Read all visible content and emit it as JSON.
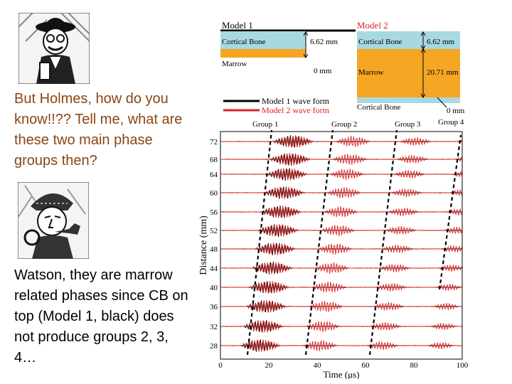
{
  "watson_text": "But Holmes, how do you know!!?? Tell me, what are these two main phase groups then?",
  "holmes_text": "Watson, they are marrow related phases since CB on top (Model 1, black) does not produce groups 2, 3, 4…",
  "model1": {
    "title": "Model 1",
    "layer_top": "Cortical Bone",
    "layer_bottom": "Marrow",
    "thickness_label": "6.62 mm",
    "zero_label": "0 mm",
    "colors": {
      "bone": "#a8d8e0",
      "marrow": "#f5a623"
    }
  },
  "model2": {
    "title": "Model 2",
    "layer_top": "Cortical Bone",
    "layer_mid": "Marrow",
    "layer_bottom": "Cortical Bone",
    "thickness_top_label": "6.62 mm",
    "thickness_mid_label": "20.71 mm",
    "zero_label": "0 mm"
  },
  "legend": [
    {
      "label": "Model 1 wave form",
      "color": "#000000"
    },
    {
      "label": "Model 2 wave form",
      "color": "#e02020"
    }
  ],
  "groups": [
    "Group 1",
    "Group 2",
    "Group 3",
    "Group 4"
  ],
  "chart_data": {
    "type": "line",
    "xlabel": "Time (μs)",
    "ylabel": "Distance (mm)",
    "x_ticks": [
      "0",
      "20",
      "40",
      "60",
      "80",
      "100"
    ],
    "y_ticks": [
      "72",
      "68",
      "64",
      "60",
      "56",
      "52",
      "48",
      "44",
      "40",
      "36",
      "32",
      "28"
    ],
    "xlim": [
      0,
      100
    ],
    "series": [
      {
        "name": "Model 1 wave form",
        "color": "#000000"
      },
      {
        "name": "Model 2 wave form",
        "color": "#e02020"
      }
    ]
  }
}
